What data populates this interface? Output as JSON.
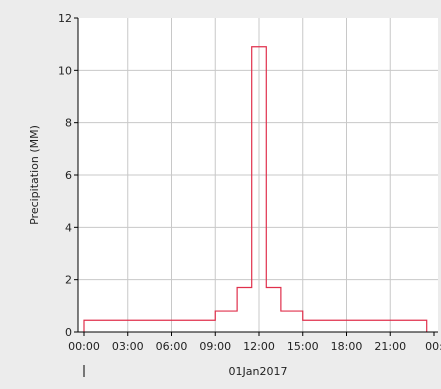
{
  "chart_data": {
    "type": "line",
    "line_style": "step",
    "xlabel": "",
    "date_label": "01Jan2017",
    "ylabel": "Precipitation (MM)",
    "ylim": [
      0,
      12
    ],
    "xlim": [
      "00:00",
      "24:00"
    ],
    "grid": true,
    "x_tick_labels": [
      "00:00",
      "03:00",
      "06:00",
      "09:00",
      "12:00",
      "15:00",
      "18:00",
      "21:00",
      "00:"
    ],
    "y_tick_labels": [
      "0",
      "2",
      "4",
      "6",
      "8",
      "10",
      "12"
    ],
    "series": [
      {
        "color": "#e0304c",
        "steps": [
          {
            "start": "00:00",
            "end": "09:00",
            "value": 0.45
          },
          {
            "start": "09:00",
            "end": "10:30",
            "value": 0.8
          },
          {
            "start": "10:30",
            "end": "11:30",
            "value": 1.7
          },
          {
            "start": "11:30",
            "end": "12:30",
            "value": 10.9
          },
          {
            "start": "12:30",
            "end": "13:30",
            "value": 1.7
          },
          {
            "start": "13:30",
            "end": "15:00",
            "value": 0.8
          },
          {
            "start": "15:00",
            "end": "23:30",
            "value": 0.45
          }
        ]
      }
    ],
    "colors": {
      "plot_background": "#ffffff",
      "page_background": "#ececec",
      "grid": "#c8c8c8",
      "axis": "#000000"
    }
  }
}
